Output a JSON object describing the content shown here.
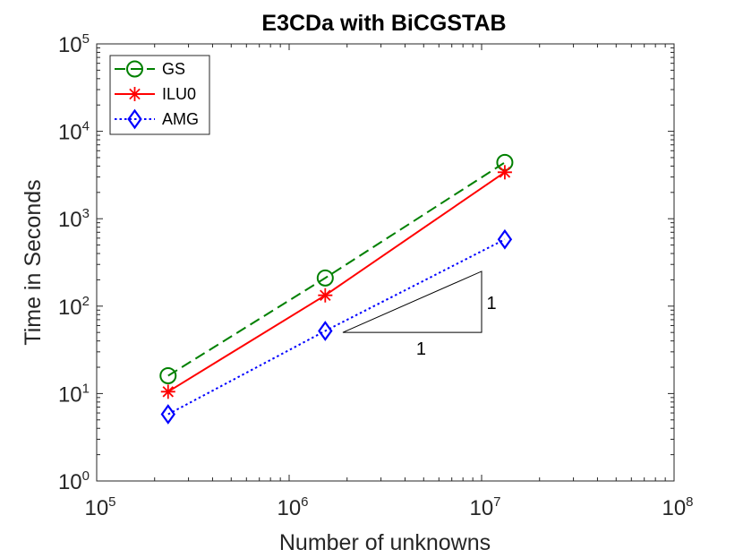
{
  "chart_data": {
    "type": "line",
    "title": "E3CDa with BiCGSTAB",
    "xlabel": "Number of unknowns",
    "ylabel": "Time in Seconds",
    "xscale": "log",
    "yscale": "log",
    "xlim": [
      100000,
      100000000
    ],
    "ylim": [
      1,
      100000
    ],
    "x_ticks": [
      {
        "value": 100000,
        "base": "10",
        "exp": "5"
      },
      {
        "value": 1000000,
        "base": "10",
        "exp": "6"
      },
      {
        "value": 10000000,
        "base": "10",
        "exp": "7"
      },
      {
        "value": 100000000,
        "base": "10",
        "exp": "8"
      }
    ],
    "y_ticks": [
      {
        "value": 1,
        "base": "10",
        "exp": "0"
      },
      {
        "value": 10,
        "base": "10",
        "exp": "1"
      },
      {
        "value": 100,
        "base": "10",
        "exp": "2"
      },
      {
        "value": 1000,
        "base": "10",
        "exp": "3"
      },
      {
        "value": 10000,
        "base": "10",
        "exp": "4"
      },
      {
        "value": 100000,
        "base": "10",
        "exp": "5"
      }
    ],
    "grid": false,
    "box": true,
    "legend_position": "top-left",
    "series": [
      {
        "name": "GS",
        "color": "#008000",
        "line_style": "dashed",
        "marker": "circle",
        "x": [
          235000,
          1540000,
          13200000
        ],
        "y": [
          16,
          210,
          4400
        ]
      },
      {
        "name": "ILU0",
        "color": "#ff0000",
        "line_style": "solid",
        "marker": "asterisk",
        "x": [
          235000,
          1540000,
          13200000
        ],
        "y": [
          10.5,
          133,
          3400
        ]
      },
      {
        "name": "AMG",
        "color": "#0000ff",
        "line_style": "dotted",
        "marker": "diamond",
        "x": [
          235000,
          1540000,
          13200000
        ],
        "y": [
          5.8,
          52,
          580
        ]
      }
    ],
    "slope_triangle": {
      "x": [
        1900000,
        10000000
      ],
      "y": [
        50,
        250
      ],
      "run_label": "1",
      "rise_label": "1"
    }
  }
}
